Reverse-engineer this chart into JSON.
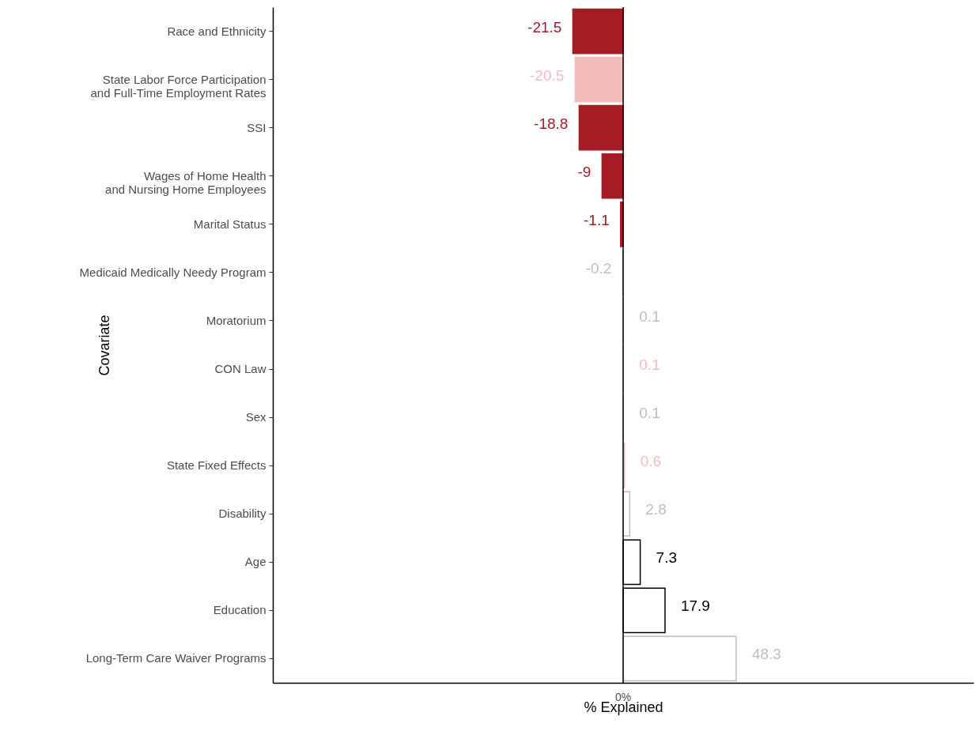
{
  "chart_data": {
    "type": "bar",
    "orientation": "horizontal",
    "xlabel": "% Explained",
    "ylabel": "Covariate",
    "categories": [
      "Race and Ethnicity",
      "State Labor Force Participation\nand Full-Time Employment Rates",
      "SSI",
      "Wages of Home Health\nand Nursing Home Employees",
      "Marital Status",
      "Medicaid Medically Needy Program",
      "Moratorium",
      "CON Law",
      "Sex",
      "State Fixed Effects",
      "Disability",
      "Age",
      "Education",
      "Long-Term Care Waiver Programs"
    ],
    "values": [
      -21.5,
      -20.5,
      -18.8,
      -9,
      -1.1,
      -0.2,
      0.1,
      0.1,
      0.1,
      0.6,
      2.8,
      7.3,
      17.9,
      48.3
    ],
    "colors": [
      "#a51c24",
      "#f4bcbb",
      "#a51c24",
      "#a51c24",
      "#a51c24",
      "#bebebe",
      "#bebebe",
      "#f4bcbb",
      "#bebebe",
      "#f4bcbb",
      "#bebebe",
      "#000000",
      "#000000",
      "#bebebe"
    ],
    "annotations": [
      "0%"
    ],
    "ref_lines": [
      {
        "axis": "x",
        "value": 0,
        "color": "#000000"
      }
    ],
    "data_labels": true,
    "grid": false
  }
}
